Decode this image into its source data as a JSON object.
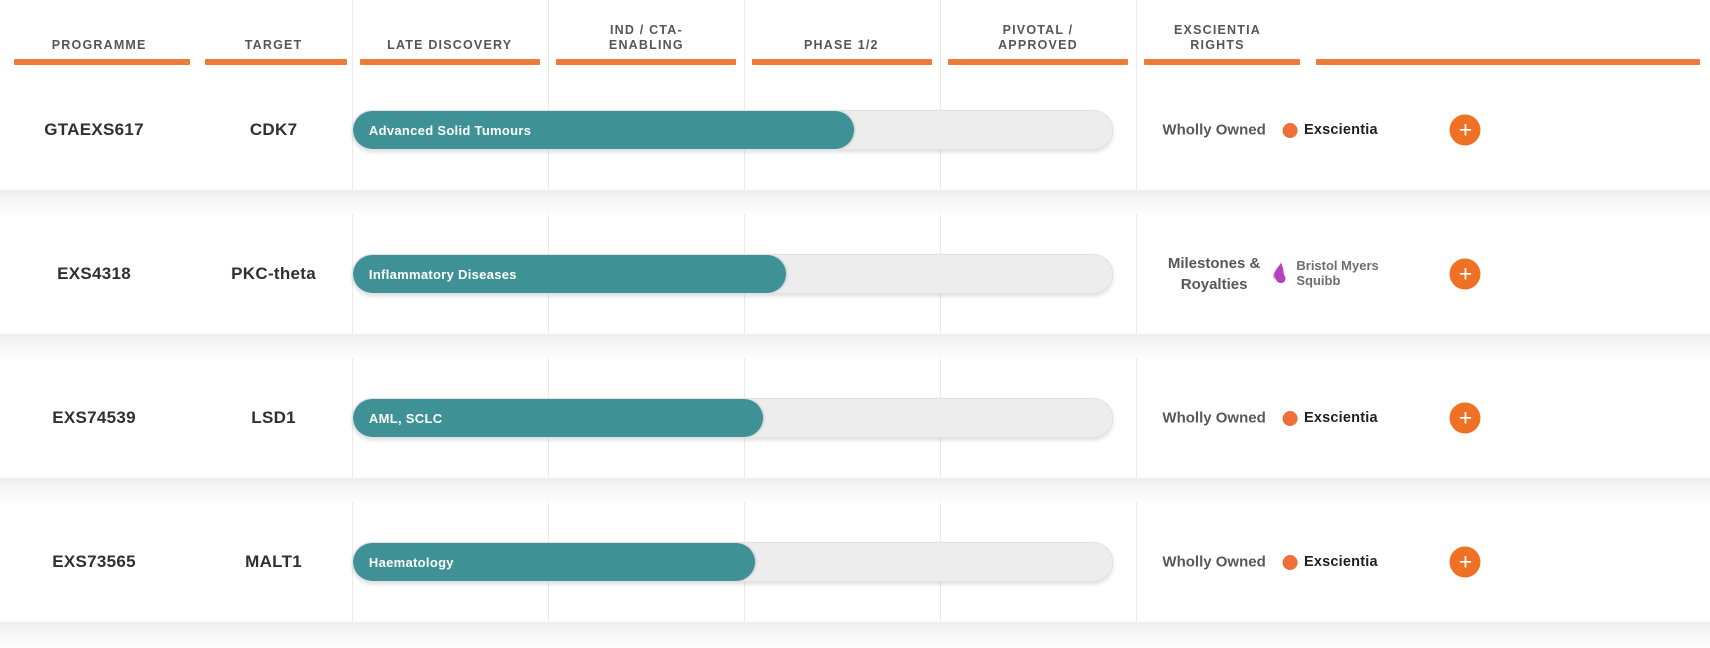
{
  "header": {
    "columns": [
      {
        "id": "programme",
        "label": "PROGRAMME"
      },
      {
        "id": "target",
        "label": "TARGET"
      },
      {
        "id": "late_discovery",
        "label": "LATE DISCOVERY"
      },
      {
        "id": "ind_cta",
        "label": "IND / CTA-ENABLING"
      },
      {
        "id": "phase_1_2",
        "label": "PHASE 1/2"
      },
      {
        "id": "pivotal",
        "label": "PIVOTAL / APPROVED"
      },
      {
        "id": "rights",
        "label": "EXSCIENTIA RIGHTS"
      }
    ]
  },
  "rows": [
    {
      "programme": "GTAEXS617",
      "target": "CDK7",
      "indication": "Advanced Solid Tumours",
      "progress_pct": 66,
      "rights": "Wholly Owned",
      "partner_type": "exscientia",
      "partner_name": "Exscientia"
    },
    {
      "programme": "EXS4318",
      "target": "PKC-theta",
      "indication": "Inflammatory Diseases",
      "progress_pct": 57,
      "rights": "Milestones & Royalties",
      "partner_type": "bms",
      "partner_name": "Bristol Myers Squibb"
    },
    {
      "programme": "EXS74539",
      "target": "LSD1",
      "indication": "AML, SCLC",
      "progress_pct": 54,
      "rights": "Wholly Owned",
      "partner_type": "exscientia",
      "partner_name": "Exscientia"
    },
    {
      "programme": "EXS73565",
      "target": "MALT1",
      "indication": "Haematology",
      "progress_pct": 53,
      "rights": "Wholly Owned",
      "partner_type": "exscientia",
      "partner_name": "Exscientia"
    }
  ],
  "expand_button": {
    "label": "+"
  },
  "colors": {
    "accent_orange": "#ee7c38",
    "bar_teal": "#3e9296",
    "track_gray": "#ededed",
    "plus_orange": "#ef7224",
    "exscientia_dot_orange": "#e8552a",
    "bms_purple": "#b83fbe",
    "header_text": "#55565a",
    "body_text": "#332f30"
  }
}
